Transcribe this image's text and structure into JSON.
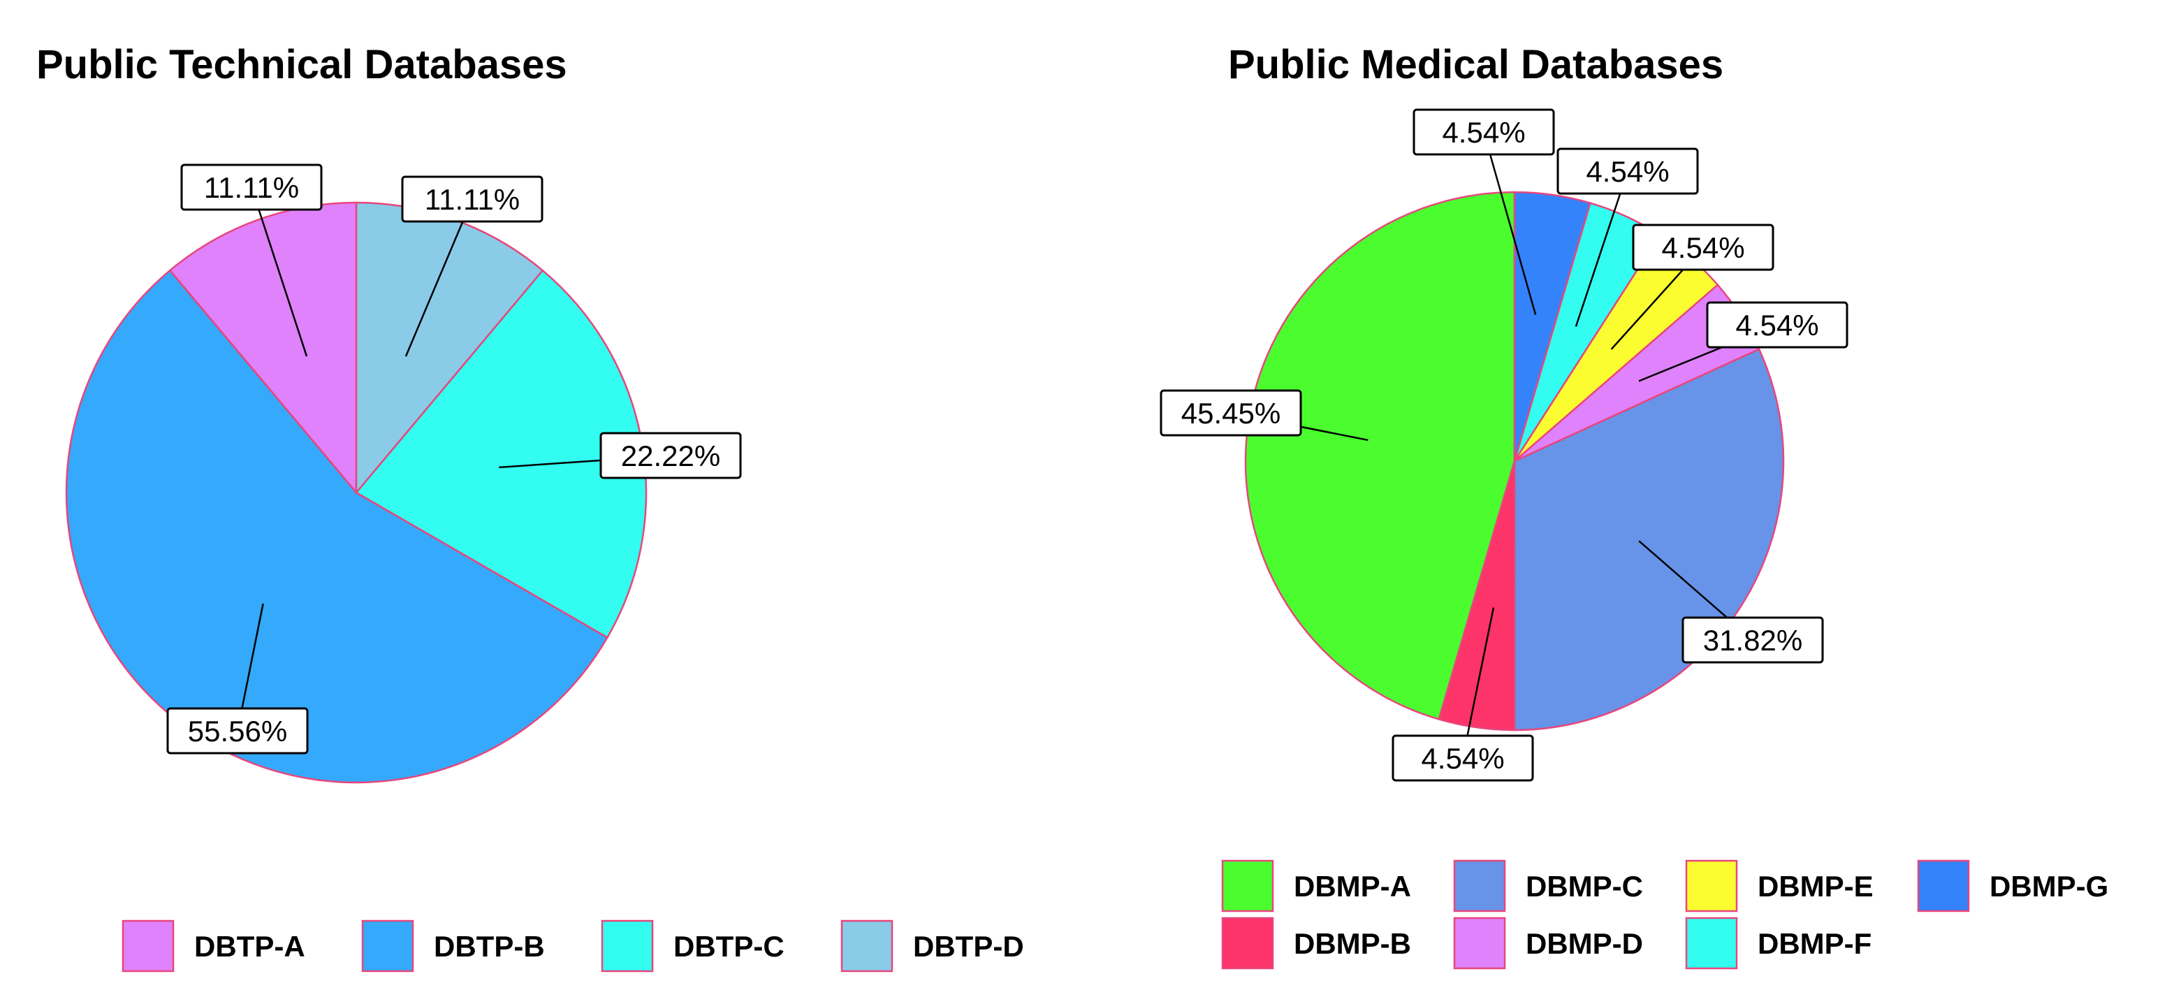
{
  "chart_data": [
    {
      "type": "pie",
      "title": "Public Technical Databases",
      "categories": [
        "DBTP-A",
        "DBTP-B",
        "DBTP-C",
        "DBTP-D"
      ],
      "values": [
        11.11,
        55.56,
        22.22,
        11.11
      ],
      "labels": [
        "11.11%",
        "55.56%",
        "22.22%",
        "11.11%"
      ],
      "colors": [
        "#df82fb",
        "#35a9fb",
        "#32fdf0",
        "#8acbe8"
      ],
      "legend": {
        "position": "bottom"
      }
    },
    {
      "type": "pie",
      "title": "Public Medical Databases",
      "categories": [
        "DBMP-A",
        "DBMP-B",
        "DBMP-C",
        "DBMP-D",
        "DBMP-E",
        "DBMP-F",
        "DBMP-G"
      ],
      "values": [
        45.45,
        4.54,
        31.82,
        4.54,
        4.54,
        4.54,
        4.54
      ],
      "labels": [
        "45.45%",
        "4.54%",
        "31.82%",
        "4.54%",
        "4.54%",
        "4.54%",
        "4.54%"
      ],
      "colors": [
        "#4bfd2f",
        "#fd3469",
        "#6793e8",
        "#df82fb",
        "#fbfd31",
        "#32fdf0",
        "#3583fb"
      ],
      "legend": {
        "position": "bottom"
      }
    }
  ]
}
